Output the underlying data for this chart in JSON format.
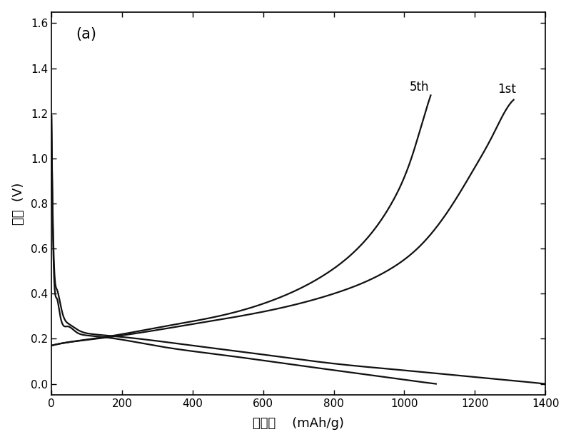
{
  "title": "(a)",
  "xlabel": "比容量    (mAh/g)",
  "ylabel": "电压  (V)",
  "xlim": [
    0,
    1400
  ],
  "ylim": [
    -0.05,
    1.65
  ],
  "xticks": [
    0,
    200,
    400,
    600,
    800,
    1000,
    1200,
    1400
  ],
  "yticks": [
    0.0,
    0.2,
    0.4,
    0.6,
    0.8,
    1.0,
    1.2,
    1.4,
    1.6
  ],
  "label_1st": "1st",
  "label_5th": "5th",
  "line_color": "#111111",
  "background": "#ffffff",
  "figsize": [
    8.0,
    6.19
  ],
  "dpi": 100
}
